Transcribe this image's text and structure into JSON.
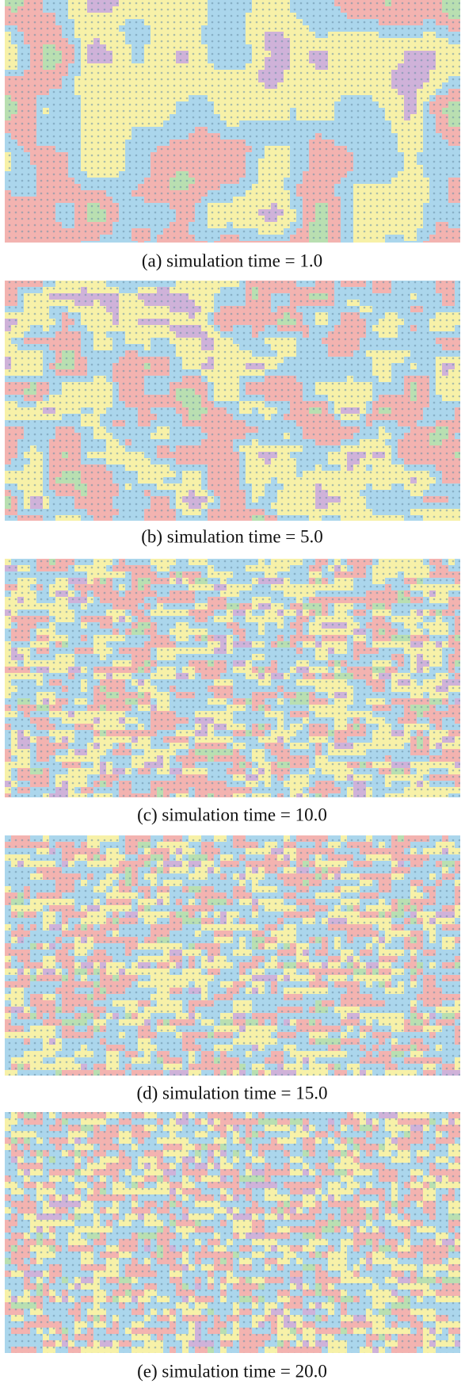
{
  "figure": {
    "panels": [
      {
        "caption": "(a) simulation time = 1.0"
      },
      {
        "caption": "(b) simulation time = 5.0"
      },
      {
        "caption": "(c) simulation time = 10.0"
      },
      {
        "caption": "(d) simulation time = 15.0"
      },
      {
        "caption": "(e) simulation time = 20.0"
      }
    ]
  }
}
